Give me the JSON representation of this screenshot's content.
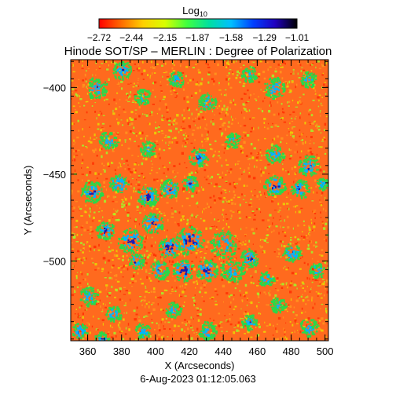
{
  "chart_data": {
    "type": "heatmap",
    "title": "Hinode SOT/SP – MERLIN : Degree of Polarization",
    "xlabel": "X (Arcseconds)",
    "ylabel": "Y (Arcseconds)",
    "xlim": [
      350,
      502
    ],
    "ylim": [
      -546,
      -384
    ],
    "x_ticks": [
      "360",
      "380",
      "400",
      "420",
      "440",
      "460",
      "480",
      "500"
    ],
    "x_tick_values": [
      360,
      380,
      400,
      420,
      440,
      460,
      480,
      500
    ],
    "y_ticks": [
      "−400",
      "−450",
      "−500"
    ],
    "y_tick_values": [
      -400,
      -450,
      -500
    ],
    "timestamp": "6‐Aug‐2023 01:12:05.063",
    "colorbar": {
      "title": "Log",
      "title_sub": "10",
      "range": [
        -2.72,
        -1.01
      ],
      "tick_labels": [
        "−2.72",
        "−2.44",
        "−2.15",
        "−1.87",
        "−1.58",
        "−1.29",
        "−1.01"
      ],
      "tick_values": [
        -2.72,
        -2.44,
        -2.15,
        -1.87,
        -1.58,
        -1.29,
        -1.01
      ],
      "colors": [
        "#ff0000",
        "#ff6a00",
        "#ffd000",
        "#d8ff00",
        "#40ff40",
        "#00e0a0",
        "#00c0ff",
        "#0040ff",
        "#2000c0",
        "#000000"
      ]
    },
    "field_colors": {
      "background": "#ff6a1e",
      "speckle": [
        "#ff2a00",
        "#ff9a1e",
        "#e8e000",
        "#9cff2a"
      ],
      "network_mid": "#2ad84a",
      "network_high": "#00b4ff",
      "network_peak": "#1a1ab4"
    },
    "grid": false
  }
}
